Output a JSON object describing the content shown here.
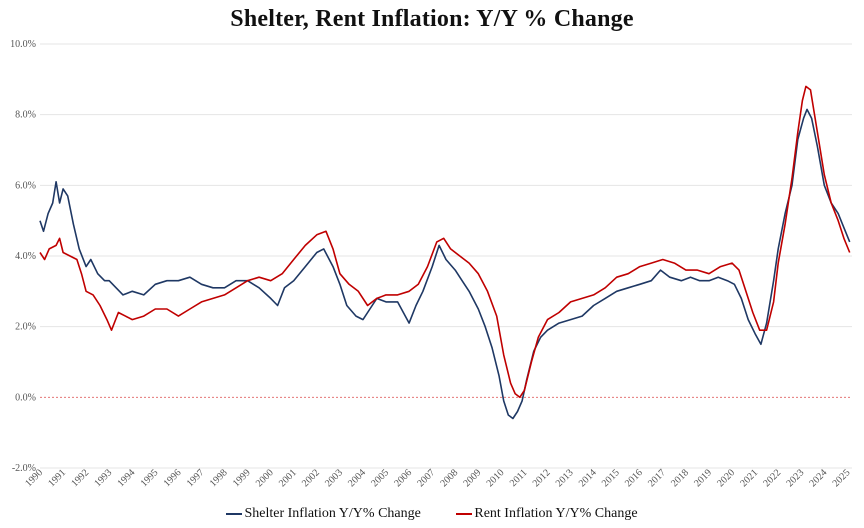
{
  "chart_data": {
    "type": "line",
    "title": "Shelter, Rent Inflation: Y/Y % Change",
    "xlabel": "",
    "ylabel": "",
    "xlim": [
      1990,
      2025.2
    ],
    "ylim": [
      -2,
      10
    ],
    "y_ticks": [
      "10.0%",
      "8.0%",
      "6.0%",
      "4.0%",
      "2.0%",
      "0.0%",
      "-2.0%"
    ],
    "x_ticks": [
      "1990",
      "1991",
      "1992",
      "1993",
      "1994",
      "1995",
      "1996",
      "1997",
      "1998",
      "1999",
      "2000",
      "2001",
      "2002",
      "2003",
      "2004",
      "2005",
      "2006",
      "2007",
      "2008",
      "2009",
      "2010",
      "2011",
      "2012",
      "2013",
      "2014",
      "2015",
      "2016",
      "2017",
      "2018",
      "2019",
      "2020",
      "2021",
      "2022",
      "2023",
      "2024",
      "2025"
    ],
    "grid": true,
    "zero_line": true,
    "legend_position": "bottom",
    "series": [
      {
        "name": "Shelter Inflation Y/Y% Change",
        "color": "#1f3864",
        "points": [
          [
            1990.0,
            5.0
          ],
          [
            1990.15,
            4.7
          ],
          [
            1990.35,
            5.2
          ],
          [
            1990.55,
            5.5
          ],
          [
            1990.7,
            6.1
          ],
          [
            1990.85,
            5.5
          ],
          [
            1991.0,
            5.9
          ],
          [
            1991.2,
            5.7
          ],
          [
            1991.45,
            4.9
          ],
          [
            1991.7,
            4.2
          ],
          [
            1992.0,
            3.7
          ],
          [
            1992.2,
            3.9
          ],
          [
            1992.5,
            3.5
          ],
          [
            1992.8,
            3.3
          ],
          [
            1993.0,
            3.3
          ],
          [
            1993.3,
            3.1
          ],
          [
            1993.6,
            2.9
          ],
          [
            1994.0,
            3.0
          ],
          [
            1994.5,
            2.9
          ],
          [
            1995.0,
            3.2
          ],
          [
            1995.5,
            3.3
          ],
          [
            1996.0,
            3.3
          ],
          [
            1996.5,
            3.4
          ],
          [
            1997.0,
            3.2
          ],
          [
            1997.5,
            3.1
          ],
          [
            1998.0,
            3.1
          ],
          [
            1998.5,
            3.3
          ],
          [
            1999.0,
            3.3
          ],
          [
            1999.5,
            3.1
          ],
          [
            2000.0,
            2.8
          ],
          [
            2000.3,
            2.6
          ],
          [
            2000.6,
            3.1
          ],
          [
            2001.0,
            3.3
          ],
          [
            2001.5,
            3.7
          ],
          [
            2002.0,
            4.1
          ],
          [
            2002.3,
            4.2
          ],
          [
            2002.7,
            3.7
          ],
          [
            2003.0,
            3.2
          ],
          [
            2003.3,
            2.6
          ],
          [
            2003.7,
            2.3
          ],
          [
            2004.0,
            2.2
          ],
          [
            2004.3,
            2.5
          ],
          [
            2004.6,
            2.8
          ],
          [
            2005.0,
            2.7
          ],
          [
            2005.5,
            2.7
          ],
          [
            2006.0,
            2.1
          ],
          [
            2006.3,
            2.6
          ],
          [
            2006.6,
            3.0
          ],
          [
            2007.0,
            3.7
          ],
          [
            2007.3,
            4.3
          ],
          [
            2007.6,
            3.9
          ],
          [
            2008.0,
            3.6
          ],
          [
            2008.3,
            3.3
          ],
          [
            2008.6,
            3.0
          ],
          [
            2009.0,
            2.5
          ],
          [
            2009.3,
            2.0
          ],
          [
            2009.6,
            1.4
          ],
          [
            2009.9,
            0.6
          ],
          [
            2010.1,
            -0.1
          ],
          [
            2010.3,
            -0.5
          ],
          [
            2010.5,
            -0.6
          ],
          [
            2010.7,
            -0.4
          ],
          [
            2010.9,
            -0.1
          ],
          [
            2011.1,
            0.5
          ],
          [
            2011.4,
            1.3
          ],
          [
            2011.7,
            1.7
          ],
          [
            2012.0,
            1.9
          ],
          [
            2012.5,
            2.1
          ],
          [
            2013.0,
            2.2
          ],
          [
            2013.5,
            2.3
          ],
          [
            2014.0,
            2.6
          ],
          [
            2014.5,
            2.8
          ],
          [
            2015.0,
            3.0
          ],
          [
            2015.5,
            3.1
          ],
          [
            2016.0,
            3.2
          ],
          [
            2016.5,
            3.3
          ],
          [
            2016.9,
            3.6
          ],
          [
            2017.3,
            3.4
          ],
          [
            2017.8,
            3.3
          ],
          [
            2018.2,
            3.4
          ],
          [
            2018.6,
            3.3
          ],
          [
            2019.0,
            3.3
          ],
          [
            2019.4,
            3.4
          ],
          [
            2019.8,
            3.3
          ],
          [
            2020.1,
            3.2
          ],
          [
            2020.4,
            2.8
          ],
          [
            2020.7,
            2.2
          ],
          [
            2021.0,
            1.8
          ],
          [
            2021.25,
            1.5
          ],
          [
            2021.5,
            2.1
          ],
          [
            2021.8,
            3.3
          ],
          [
            2022.0,
            4.2
          ],
          [
            2022.3,
            5.2
          ],
          [
            2022.6,
            6.0
          ],
          [
            2022.85,
            7.3
          ],
          [
            2023.1,
            7.9
          ],
          [
            2023.25,
            8.15
          ],
          [
            2023.45,
            7.9
          ],
          [
            2023.7,
            7.1
          ],
          [
            2024.0,
            6.0
          ],
          [
            2024.3,
            5.5
          ],
          [
            2024.6,
            5.2
          ],
          [
            2024.85,
            4.8
          ],
          [
            2025.1,
            4.4
          ]
        ]
      },
      {
        "name": "Rent Inflation Y/Y% Change",
        "color": "#c00000",
        "points": [
          [
            1990.0,
            4.1
          ],
          [
            1990.2,
            3.9
          ],
          [
            1990.4,
            4.2
          ],
          [
            1990.7,
            4.3
          ],
          [
            1990.85,
            4.5
          ],
          [
            1991.0,
            4.1
          ],
          [
            1991.3,
            4.0
          ],
          [
            1991.6,
            3.9
          ],
          [
            1991.8,
            3.5
          ],
          [
            1992.0,
            3.0
          ],
          [
            1992.3,
            2.9
          ],
          [
            1992.6,
            2.6
          ],
          [
            1992.9,
            2.2
          ],
          [
            1993.1,
            1.9
          ],
          [
            1993.4,
            2.4
          ],
          [
            1993.7,
            2.3
          ],
          [
            1994.0,
            2.2
          ],
          [
            1994.5,
            2.3
          ],
          [
            1995.0,
            2.5
          ],
          [
            1995.5,
            2.5
          ],
          [
            1996.0,
            2.3
          ],
          [
            1996.5,
            2.5
          ],
          [
            1997.0,
            2.7
          ],
          [
            1997.5,
            2.8
          ],
          [
            1998.0,
            2.9
          ],
          [
            1998.5,
            3.1
          ],
          [
            1999.0,
            3.3
          ],
          [
            1999.5,
            3.4
          ],
          [
            2000.0,
            3.3
          ],
          [
            2000.5,
            3.5
          ],
          [
            2001.0,
            3.9
          ],
          [
            2001.5,
            4.3
          ],
          [
            2002.0,
            4.6
          ],
          [
            2002.4,
            4.7
          ],
          [
            2002.7,
            4.2
          ],
          [
            2003.0,
            3.5
          ],
          [
            2003.4,
            3.2
          ],
          [
            2003.8,
            3.0
          ],
          [
            2004.2,
            2.6
          ],
          [
            2004.6,
            2.8
          ],
          [
            2005.0,
            2.9
          ],
          [
            2005.5,
            2.9
          ],
          [
            2006.0,
            3.0
          ],
          [
            2006.4,
            3.2
          ],
          [
            2006.8,
            3.7
          ],
          [
            2007.2,
            4.4
          ],
          [
            2007.5,
            4.5
          ],
          [
            2007.8,
            4.2
          ],
          [
            2008.2,
            4.0
          ],
          [
            2008.6,
            3.8
          ],
          [
            2009.0,
            3.5
          ],
          [
            2009.4,
            3.0
          ],
          [
            2009.8,
            2.3
          ],
          [
            2010.1,
            1.2
          ],
          [
            2010.4,
            0.4
          ],
          [
            2010.6,
            0.1
          ],
          [
            2010.8,
            0.0
          ],
          [
            2011.0,
            0.2
          ],
          [
            2011.3,
            1.0
          ],
          [
            2011.6,
            1.7
          ],
          [
            2012.0,
            2.2
          ],
          [
            2012.5,
            2.4
          ],
          [
            2013.0,
            2.7
          ],
          [
            2013.5,
            2.8
          ],
          [
            2014.0,
            2.9
          ],
          [
            2014.5,
            3.1
          ],
          [
            2015.0,
            3.4
          ],
          [
            2015.5,
            3.5
          ],
          [
            2016.0,
            3.7
          ],
          [
            2016.5,
            3.8
          ],
          [
            2017.0,
            3.9
          ],
          [
            2017.5,
            3.8
          ],
          [
            2018.0,
            3.6
          ],
          [
            2018.5,
            3.6
          ],
          [
            2019.0,
            3.5
          ],
          [
            2019.5,
            3.7
          ],
          [
            2020.0,
            3.8
          ],
          [
            2020.3,
            3.6
          ],
          [
            2020.6,
            3.0
          ],
          [
            2020.9,
            2.4
          ],
          [
            2021.2,
            1.9
          ],
          [
            2021.5,
            1.9
          ],
          [
            2021.8,
            2.7
          ],
          [
            2022.0,
            3.8
          ],
          [
            2022.3,
            4.9
          ],
          [
            2022.6,
            6.2
          ],
          [
            2022.85,
            7.5
          ],
          [
            2023.05,
            8.4
          ],
          [
            2023.2,
            8.8
          ],
          [
            2023.4,
            8.7
          ],
          [
            2023.7,
            7.5
          ],
          [
            2024.0,
            6.3
          ],
          [
            2024.3,
            5.5
          ],
          [
            2024.6,
            5.0
          ],
          [
            2024.85,
            4.5
          ],
          [
            2025.1,
            4.1
          ]
        ]
      }
    ]
  }
}
